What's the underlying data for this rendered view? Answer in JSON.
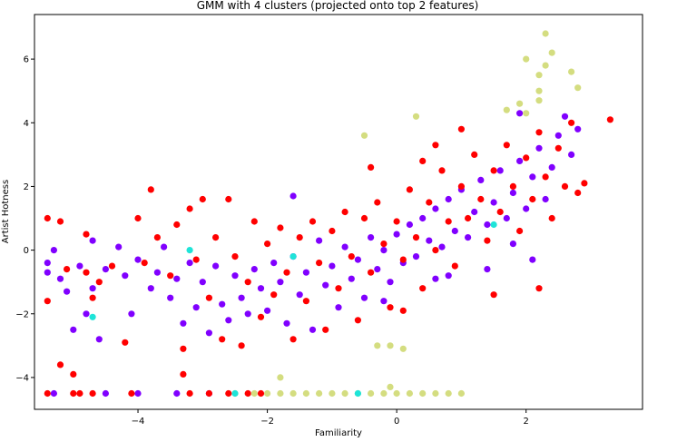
{
  "chart_data": {
    "type": "scatter",
    "title": "GMM with 4 clusters (projected onto top 2 features)",
    "xlabel": "Familiarity",
    "ylabel": "Artist Hotness",
    "xlim": [
      -5.6,
      3.8
    ],
    "ylim": [
      -5.0,
      7.4
    ],
    "x_ticks": [
      -4,
      -2,
      0,
      2
    ],
    "y_ticks": [
      -4,
      -2,
      0,
      2,
      4,
      6
    ],
    "grid": false,
    "legend": "none",
    "series": [
      {
        "color": "#8000ff",
        "points": [
          [
            -5.4,
            -0.4
          ],
          [
            -5.4,
            -0.7
          ],
          [
            -5.3,
            0.0
          ],
          [
            -5.2,
            -0.9
          ],
          [
            -5.1,
            -1.3
          ],
          [
            -5.0,
            -2.5
          ],
          [
            -4.9,
            -0.5
          ],
          [
            -4.8,
            -2.0
          ],
          [
            -4.7,
            0.3
          ],
          [
            -4.7,
            -1.2
          ],
          [
            -4.6,
            -2.8
          ],
          [
            -4.5,
            -0.6
          ],
          [
            -4.3,
            0.1
          ],
          [
            -4.2,
            -0.8
          ],
          [
            -4.1,
            -2.0
          ],
          [
            -4.0,
            -0.3
          ],
          [
            -3.8,
            -1.2
          ],
          [
            -3.7,
            -0.7
          ],
          [
            -3.6,
            0.1
          ],
          [
            -3.5,
            -1.5
          ],
          [
            -3.4,
            -0.9
          ],
          [
            -3.3,
            -2.3
          ],
          [
            -3.2,
            -0.4
          ],
          [
            -3.1,
            -1.8
          ],
          [
            -3.0,
            -1.0
          ],
          [
            -2.9,
            -2.6
          ],
          [
            -2.8,
            -0.5
          ],
          [
            -2.7,
            -1.7
          ],
          [
            -2.6,
            -2.2
          ],
          [
            -2.5,
            -0.8
          ],
          [
            -2.4,
            -1.5
          ],
          [
            -2.3,
            -2.0
          ],
          [
            -2.2,
            -0.6
          ],
          [
            -2.1,
            -1.2
          ],
          [
            -2.0,
            -1.9
          ],
          [
            -1.9,
            -0.4
          ],
          [
            -1.8,
            -1.0
          ],
          [
            -1.7,
            -2.3
          ],
          [
            -1.6,
            -0.2
          ],
          [
            -1.5,
            -1.4
          ],
          [
            -1.4,
            -0.7
          ],
          [
            -1.3,
            -2.5
          ],
          [
            -1.2,
            0.3
          ],
          [
            -1.1,
            -1.1
          ],
          [
            -1.0,
            -0.5
          ],
          [
            -0.9,
            -1.8
          ],
          [
            -0.8,
            0.1
          ],
          [
            -0.7,
            -0.9
          ],
          [
            -0.6,
            -0.3
          ],
          [
            -0.5,
            -1.5
          ],
          [
            -0.4,
            0.4
          ],
          [
            -0.3,
            -0.6
          ],
          [
            -0.2,
            0.0
          ],
          [
            -0.1,
            -1.0
          ],
          [
            0.0,
            0.5
          ],
          [
            0.1,
            -0.4
          ],
          [
            0.2,
            0.8
          ],
          [
            0.3,
            -0.2
          ],
          [
            0.4,
            1.0
          ],
          [
            0.5,
            0.3
          ],
          [
            0.6,
            1.3
          ],
          [
            0.7,
            0.1
          ],
          [
            0.8,
            1.6
          ],
          [
            0.9,
            0.6
          ],
          [
            1.0,
            1.9
          ],
          [
            1.1,
            0.4
          ],
          [
            1.2,
            1.2
          ],
          [
            1.3,
            2.2
          ],
          [
            1.4,
            0.8
          ],
          [
            1.5,
            1.5
          ],
          [
            1.6,
            2.5
          ],
          [
            1.7,
            1.0
          ],
          [
            1.8,
            1.8
          ],
          [
            1.9,
            2.8
          ],
          [
            2.0,
            1.3
          ],
          [
            2.1,
            2.3
          ],
          [
            2.2,
            3.2
          ],
          [
            2.3,
            1.6
          ],
          [
            2.4,
            2.6
          ],
          [
            2.5,
            3.6
          ],
          [
            2.6,
            4.2
          ],
          [
            2.7,
            3.0
          ],
          [
            2.8,
            3.8
          ],
          [
            1.9,
            4.3
          ],
          [
            2.1,
            -0.3
          ],
          [
            1.4,
            -0.6
          ],
          [
            0.8,
            -0.8
          ],
          [
            -1.6,
            1.7
          ],
          [
            -4.5,
            -4.5
          ],
          [
            -4.0,
            -4.5
          ],
          [
            -3.4,
            -4.5
          ],
          [
            -2.9,
            -4.5
          ],
          [
            -5.3,
            -4.5
          ],
          [
            -0.2,
            -1.6
          ],
          [
            0.6,
            -0.9
          ],
          [
            1.8,
            0.2
          ]
        ]
      },
      {
        "color": "#ff0000",
        "points": [
          [
            -5.4,
            1.0
          ],
          [
            -5.4,
            -1.6
          ],
          [
            -5.2,
            0.9
          ],
          [
            -5.1,
            -0.6
          ],
          [
            -5.0,
            -3.9
          ],
          [
            -4.8,
            0.5
          ],
          [
            -4.8,
            -0.7
          ],
          [
            -4.7,
            -1.5
          ],
          [
            -4.6,
            -1.0
          ],
          [
            -4.4,
            -0.5
          ],
          [
            -4.2,
            -2.9
          ],
          [
            -4.0,
            1.0
          ],
          [
            -3.9,
            -0.4
          ],
          [
            -3.8,
            1.9
          ],
          [
            -3.7,
            0.4
          ],
          [
            -3.5,
            -0.8
          ],
          [
            -3.4,
            0.8
          ],
          [
            -3.3,
            -3.1
          ],
          [
            -3.2,
            1.3
          ],
          [
            -3.1,
            -0.3
          ],
          [
            -3.0,
            1.6
          ],
          [
            -2.9,
            -1.5
          ],
          [
            -2.8,
            0.4
          ],
          [
            -2.7,
            -2.8
          ],
          [
            -2.6,
            1.6
          ],
          [
            -2.5,
            -0.2
          ],
          [
            -2.4,
            -3.0
          ],
          [
            -2.3,
            -1.0
          ],
          [
            -2.2,
            0.9
          ],
          [
            -2.1,
            -2.1
          ],
          [
            -2.0,
            0.2
          ],
          [
            -1.9,
            -1.4
          ],
          [
            -1.8,
            0.7
          ],
          [
            -1.7,
            -0.7
          ],
          [
            -1.6,
            -2.8
          ],
          [
            -1.5,
            0.4
          ],
          [
            -1.4,
            -1.6
          ],
          [
            -1.3,
            0.9
          ],
          [
            -1.2,
            -0.4
          ],
          [
            -1.1,
            -2.5
          ],
          [
            -1.0,
            0.6
          ],
          [
            -0.9,
            -1.2
          ],
          [
            -0.8,
            1.2
          ],
          [
            -0.7,
            -0.2
          ],
          [
            -0.6,
            -2.2
          ],
          [
            -0.5,
            1.0
          ],
          [
            -0.4,
            -0.7
          ],
          [
            -0.3,
            1.5
          ],
          [
            -0.2,
            0.2
          ],
          [
            -0.1,
            -1.8
          ],
          [
            0.0,
            0.9
          ],
          [
            0.1,
            -0.3
          ],
          [
            0.2,
            1.9
          ],
          [
            0.3,
            0.4
          ],
          [
            0.4,
            -1.2
          ],
          [
            0.5,
            1.5
          ],
          [
            0.6,
            0.0
          ],
          [
            0.7,
            2.5
          ],
          [
            0.8,
            0.9
          ],
          [
            0.9,
            -0.5
          ],
          [
            1.0,
            2.0
          ],
          [
            1.1,
            1.0
          ],
          [
            1.2,
            3.0
          ],
          [
            1.3,
            1.6
          ],
          [
            1.4,
            0.3
          ],
          [
            1.5,
            2.5
          ],
          [
            1.6,
            1.2
          ],
          [
            1.7,
            3.3
          ],
          [
            1.8,
            2.0
          ],
          [
            1.9,
            0.6
          ],
          [
            2.0,
            2.9
          ],
          [
            2.1,
            1.6
          ],
          [
            2.2,
            3.7
          ],
          [
            2.3,
            2.3
          ],
          [
            2.4,
            1.0
          ],
          [
            2.5,
            3.2
          ],
          [
            2.6,
            2.0
          ],
          [
            2.7,
            4.0
          ],
          [
            2.8,
            1.8
          ],
          [
            2.9,
            2.1
          ],
          [
            3.3,
            4.1
          ],
          [
            2.2,
            -1.2
          ],
          [
            1.0,
            3.8
          ],
          [
            0.6,
            3.3
          ],
          [
            -0.4,
            2.6
          ],
          [
            0.1,
            -1.9
          ],
          [
            1.5,
            -1.4
          ],
          [
            0.4,
            2.8
          ],
          [
            -5.4,
            -4.5
          ],
          [
            -5.0,
            -4.5
          ],
          [
            -4.9,
            -4.5
          ],
          [
            -4.7,
            -4.5
          ],
          [
            -4.1,
            -4.5
          ],
          [
            -3.2,
            -4.5
          ],
          [
            -2.9,
            -4.5
          ],
          [
            -2.6,
            -4.5
          ],
          [
            -2.3,
            -4.5
          ],
          [
            -2.1,
            -4.5
          ],
          [
            -5.2,
            -3.6
          ],
          [
            -3.3,
            -3.9
          ]
        ]
      },
      {
        "color": "#d4dd80",
        "points": [
          [
            2.3,
            6.8
          ],
          [
            2.0,
            6.0
          ],
          [
            2.3,
            5.8
          ],
          [
            2.2,
            5.5
          ],
          [
            2.7,
            5.6
          ],
          [
            2.2,
            5.0
          ],
          [
            2.8,
            5.1
          ],
          [
            2.4,
            6.2
          ],
          [
            1.9,
            4.6
          ],
          [
            2.2,
            4.7
          ],
          [
            1.7,
            4.4
          ],
          [
            2.0,
            4.3
          ],
          [
            0.3,
            4.2
          ],
          [
            -0.5,
            3.6
          ],
          [
            -0.3,
            -3.0
          ],
          [
            -0.1,
            -3.0
          ],
          [
            0.1,
            -3.1
          ],
          [
            -1.8,
            -4.0
          ],
          [
            -2.5,
            -4.5
          ],
          [
            -2.2,
            -4.5
          ],
          [
            -2.0,
            -4.5
          ],
          [
            -1.8,
            -4.5
          ],
          [
            -1.6,
            -4.5
          ],
          [
            -1.4,
            -4.5
          ],
          [
            -1.2,
            -4.5
          ],
          [
            -1.0,
            -4.5
          ],
          [
            -0.8,
            -4.5
          ],
          [
            -0.6,
            -4.5
          ],
          [
            -0.4,
            -4.5
          ],
          [
            -0.2,
            -4.5
          ],
          [
            0.0,
            -4.5
          ],
          [
            0.2,
            -4.5
          ],
          [
            0.4,
            -4.5
          ],
          [
            0.6,
            -4.5
          ],
          [
            0.8,
            -4.5
          ],
          [
            1.0,
            -4.5
          ],
          [
            -0.1,
            -4.3
          ]
        ]
      },
      {
        "color": "#1ee4d8",
        "points": [
          [
            -4.7,
            -2.1
          ],
          [
            -3.2,
            0.0
          ],
          [
            -2.5,
            -4.5
          ],
          [
            -0.6,
            -4.5
          ],
          [
            1.5,
            0.8
          ],
          [
            -1.6,
            -0.2
          ]
        ]
      }
    ]
  }
}
